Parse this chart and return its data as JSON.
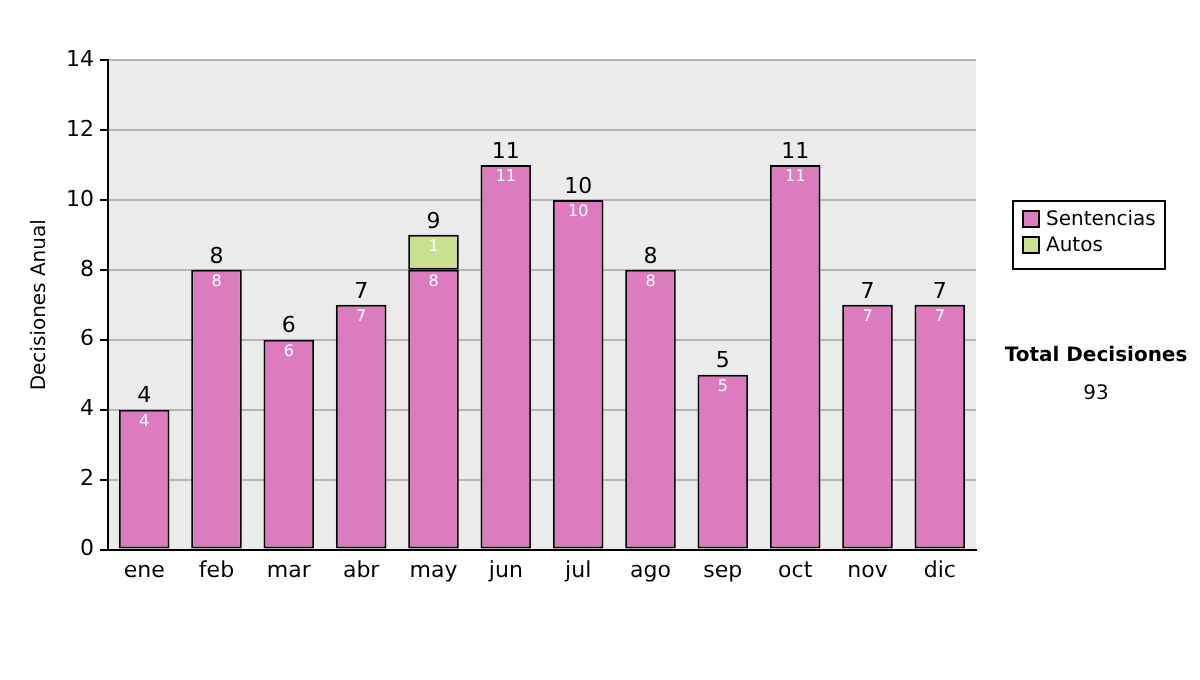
{
  "chart_data": {
    "type": "bar",
    "stacked": true,
    "ylabel": "Decisiones Anual",
    "categories": [
      "ene",
      "feb",
      "mar",
      "abr",
      "may",
      "jun",
      "jul",
      "ago",
      "sep",
      "oct",
      "nov",
      "dic"
    ],
    "series": [
      {
        "name": "Sentencias",
        "color": "#dd7bbf",
        "values": [
          4,
          8,
          6,
          7,
          8,
          11,
          10,
          8,
          5,
          11,
          7,
          7
        ]
      },
      {
        "name": "Autos",
        "color": "#c9e08f",
        "values": [
          null,
          null,
          null,
          null,
          1,
          null,
          null,
          null,
          null,
          null,
          null,
          null
        ]
      }
    ],
    "totals": [
      "4",
      "8",
      "6",
      "7",
      "9",
      "11",
      "10",
      "8",
      "5",
      "11",
      "7",
      "7"
    ],
    "data_labels": true,
    "ylim": [
      0,
      14
    ],
    "yticks": [
      0,
      2,
      4,
      6,
      8,
      10,
      12,
      14
    ],
    "grid": "y",
    "legend": "right",
    "annotations": [
      "Total Decisiones",
      "93"
    ]
  }
}
